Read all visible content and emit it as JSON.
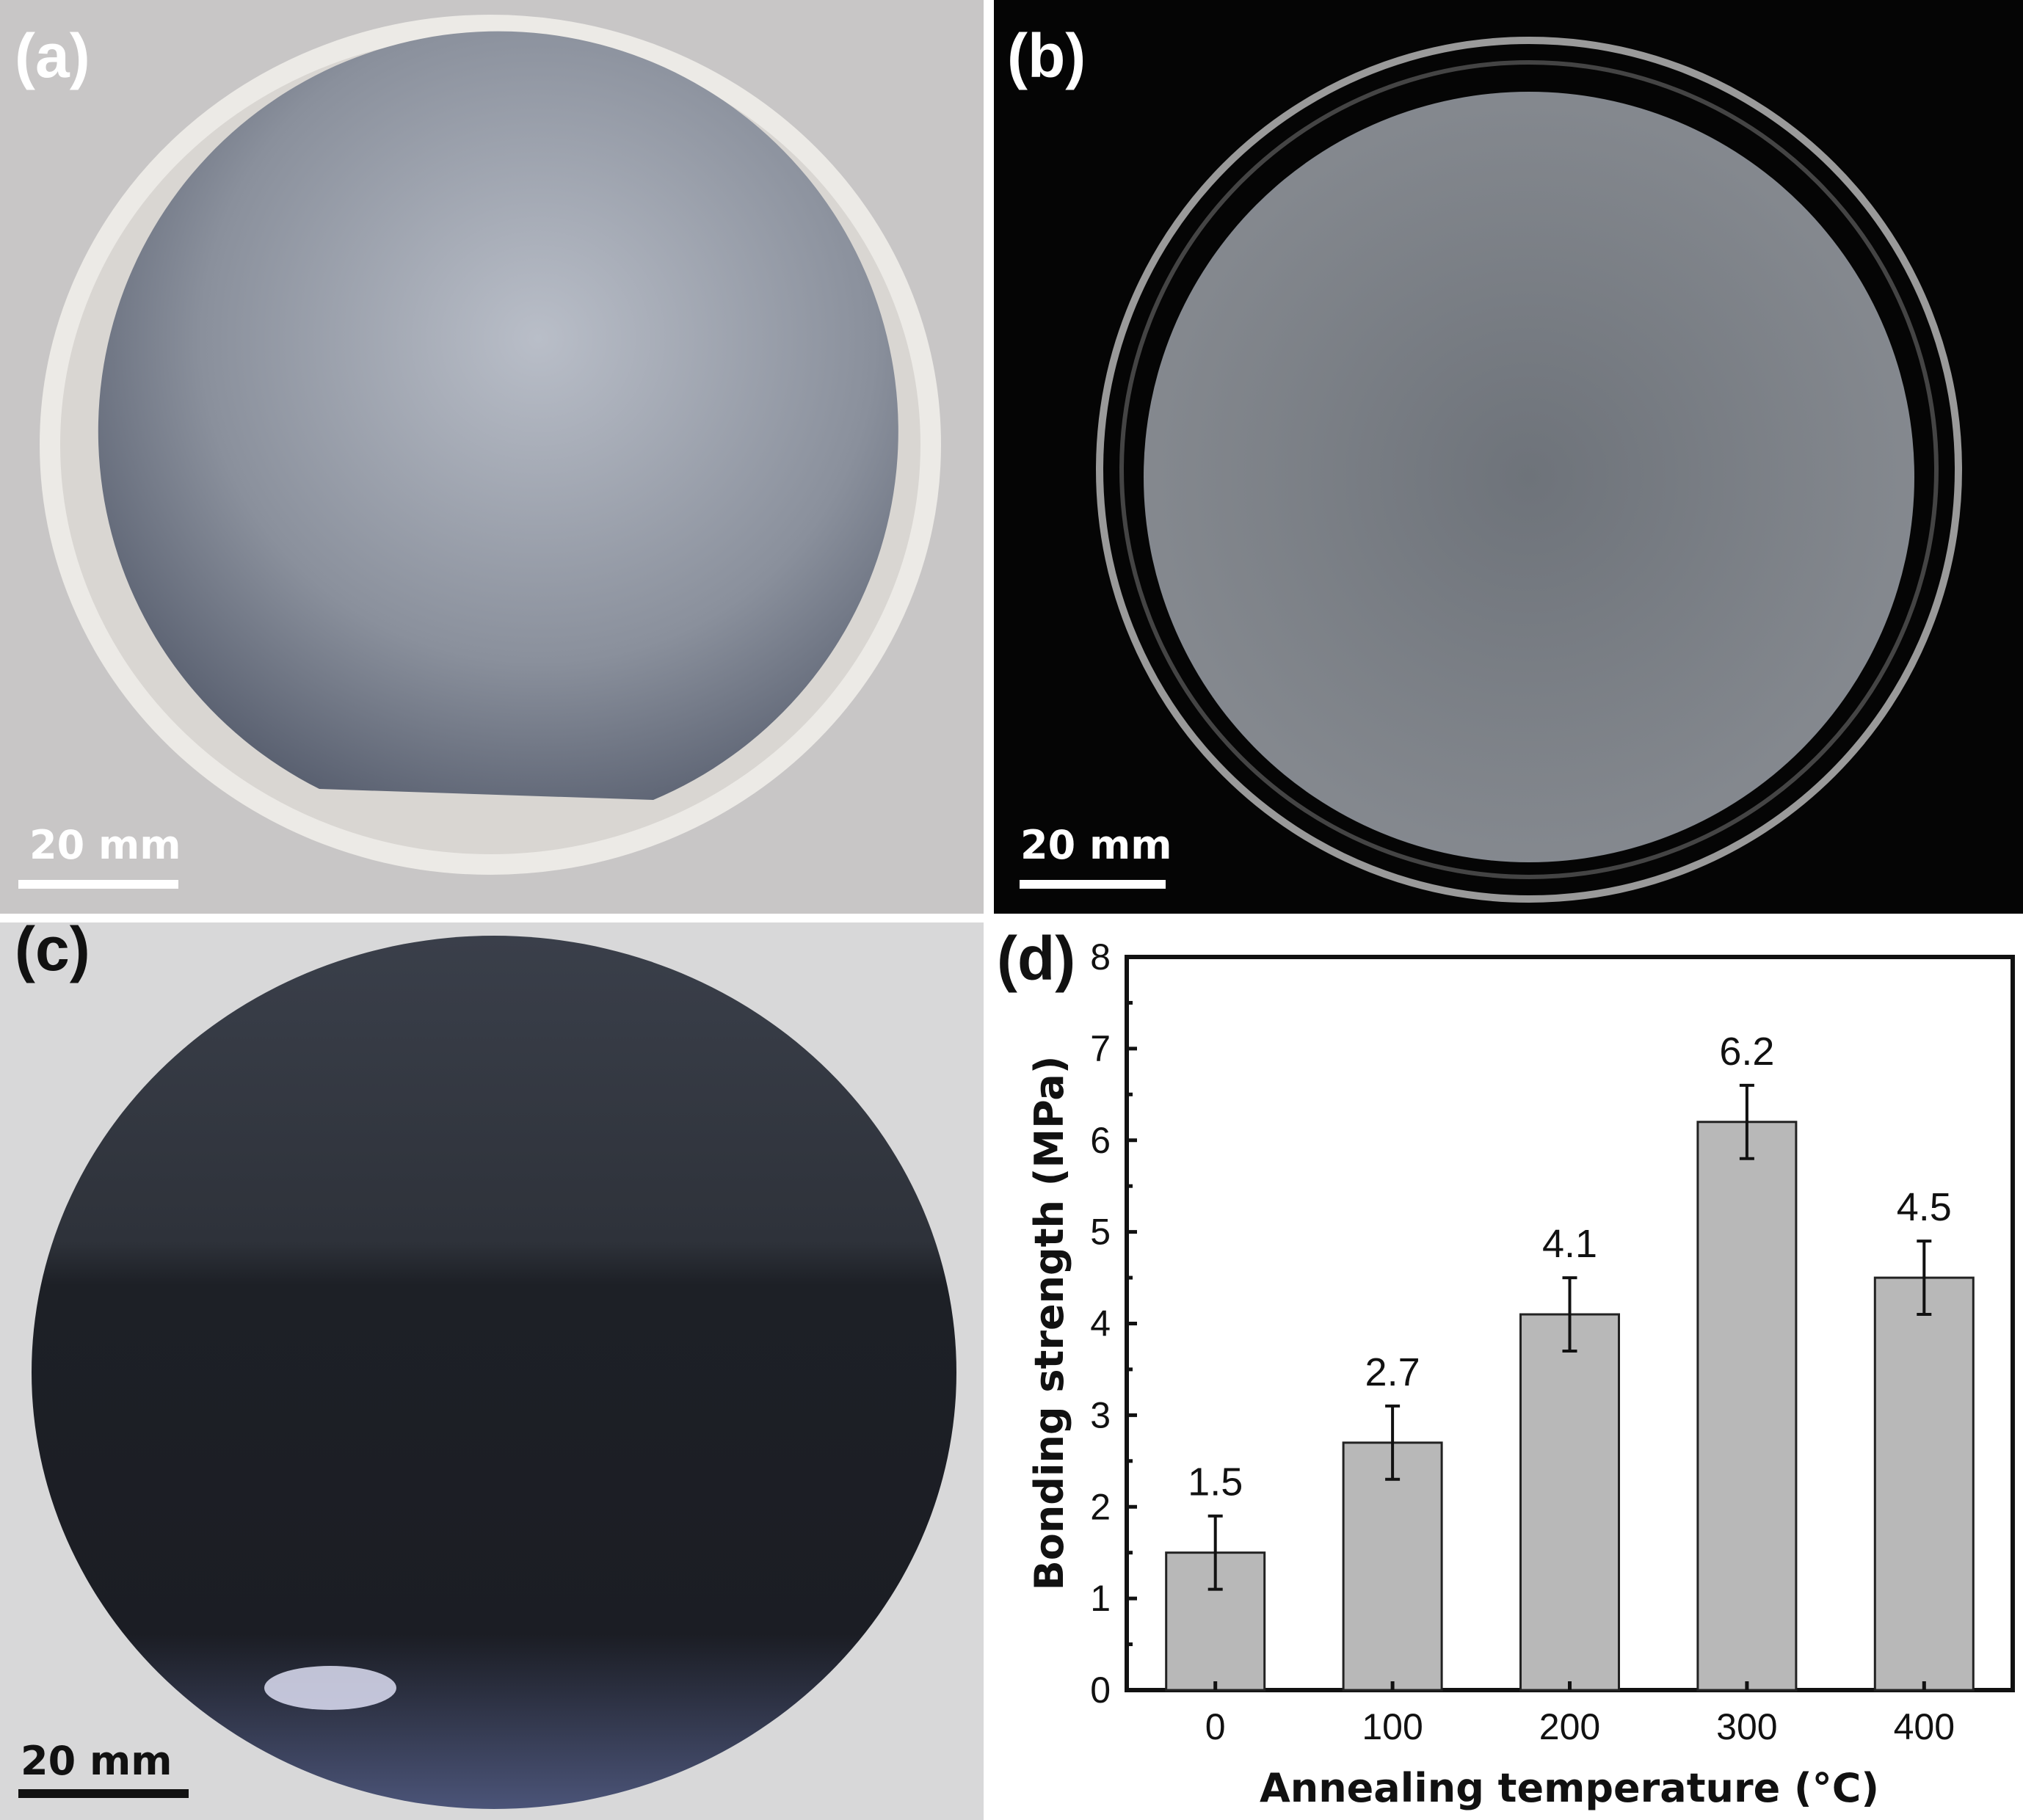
{
  "panels": {
    "a": {
      "label": "(a)",
      "scale_bar": "20 mm"
    },
    "b": {
      "label": "(b)",
      "scale_bar": "20 mm"
    },
    "c": {
      "label": "(c)",
      "scale_bar": "20 mm"
    },
    "d": {
      "label": "(d)"
    }
  },
  "chart_data": {
    "type": "bar",
    "categories": [
      "0",
      "100",
      "200",
      "300",
      "400"
    ],
    "values": [
      1.5,
      2.7,
      4.1,
      6.2,
      4.5
    ],
    "errors": [
      0.4,
      0.4,
      0.4,
      0.4,
      0.4
    ],
    "data_labels": [
      "1.5",
      "2.7",
      "4.1",
      "6.2",
      "4.5"
    ],
    "xlabel": "Annealing temperature (°C)",
    "ylabel": "Bonding strength (MPa)",
    "ylim": [
      0,
      8
    ],
    "yticks": [
      "0",
      "1",
      "2",
      "3",
      "4",
      "5",
      "6",
      "7",
      "8"
    ],
    "bar_color": "#b8b8b8",
    "grid": false
  }
}
